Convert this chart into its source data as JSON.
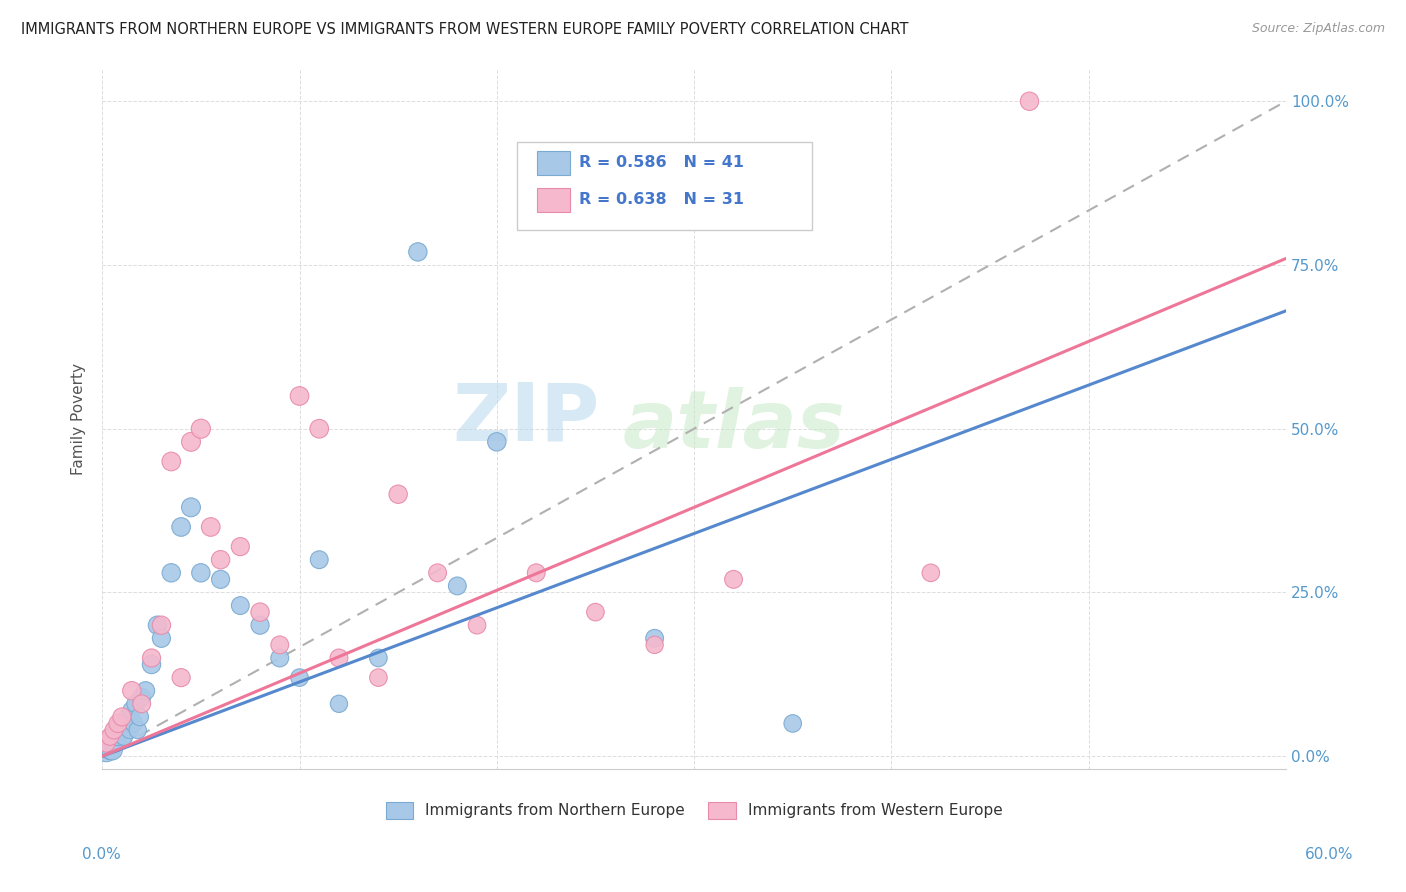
{
  "title": "IMMIGRANTS FROM NORTHERN EUROPE VS IMMIGRANTS FROM WESTERN EUROPE FAMILY POVERTY CORRELATION CHART",
  "source": "Source: ZipAtlas.com",
  "ylabel": "Family Poverty",
  "ytick_labels": [
    "0.0%",
    "25.0%",
    "50.0%",
    "75.0%",
    "100.0%"
  ],
  "ytick_values": [
    0,
    25,
    50,
    75,
    100
  ],
  "xlim": [
    0,
    60
  ],
  "ylim": [
    -2,
    105
  ],
  "legend_label1": "Immigrants from Northern Europe",
  "legend_label2": "Immigrants from Western Europe",
  "R1": 0.586,
  "N1": 41,
  "R2": 0.638,
  "N2": 31,
  "color1": "#a8c8e8",
  "color2": "#f5b8cc",
  "color1_edge": "#7aaad0",
  "color2_edge": "#e88aaa",
  "line1_color": "#5588cc",
  "line2_color": "#ee7799",
  "ref_line_color": "#b0b0b0",
  "grid_color": "#dddddd",
  "scatter1_x": [
    0.2,
    0.3,
    0.4,
    0.5,
    0.5,
    0.6,
    0.7,
    0.8,
    0.9,
    1.0,
    1.1,
    1.2,
    1.3,
    1.4,
    1.5,
    1.6,
    1.7,
    1.8,
    1.9,
    2.0,
    2.2,
    2.5,
    2.8,
    3.0,
    3.5,
    4.0,
    4.5,
    5.0,
    6.0,
    7.0,
    8.0,
    9.0,
    10.0,
    11.0,
    12.0,
    14.0,
    16.0,
    18.0,
    20.0,
    28.0,
    35.0
  ],
  "scatter1_y": [
    1,
    2,
    1,
    3,
    1,
    2,
    4,
    3,
    5,
    4,
    3,
    5,
    6,
    4,
    7,
    5,
    8,
    4,
    6,
    9,
    10,
    14,
    20,
    18,
    28,
    35,
    38,
    28,
    27,
    23,
    20,
    15,
    12,
    30,
    8,
    15,
    77,
    26,
    48,
    18,
    5
  ],
  "scatter1_sizes": [
    300,
    250,
    200,
    180,
    220,
    180,
    160,
    170,
    165,
    170,
    160,
    165,
    160,
    155,
    165,
    160,
    165,
    155,
    160,
    165,
    170,
    175,
    175,
    170,
    175,
    180,
    185,
    175,
    170,
    165,
    170,
    165,
    160,
    165,
    155,
    160,
    175,
    165,
    175,
    165,
    160
  ],
  "scatter2_x": [
    0.2,
    0.4,
    0.6,
    0.8,
    1.0,
    1.5,
    2.0,
    2.5,
    3.0,
    3.5,
    4.0,
    4.5,
    5.0,
    5.5,
    6.0,
    7.0,
    8.0,
    9.0,
    10.0,
    11.0,
    12.0,
    14.0,
    15.0,
    17.0,
    19.0,
    22.0,
    25.0,
    28.0,
    32.0,
    42.0,
    47.0
  ],
  "scatter2_y": [
    2,
    3,
    4,
    5,
    6,
    10,
    8,
    15,
    20,
    45,
    12,
    48,
    50,
    35,
    30,
    32,
    22,
    17,
    55,
    50,
    15,
    12,
    40,
    28,
    20,
    28,
    22,
    17,
    27,
    28,
    100
  ],
  "scatter2_sizes": [
    165,
    160,
    165,
    170,
    170,
    175,
    165,
    170,
    175,
    180,
    170,
    185,
    190,
    180,
    175,
    170,
    175,
    165,
    180,
    180,
    165,
    160,
    175,
    165,
    160,
    165,
    160,
    155,
    165,
    160,
    175
  ],
  "line1_x0": 0,
  "line1_y0": 0,
  "line1_x1": 60,
  "line1_y1": 68,
  "line2_x0": 0,
  "line2_y0": 0,
  "line2_x1": 60,
  "line2_y1": 76
}
